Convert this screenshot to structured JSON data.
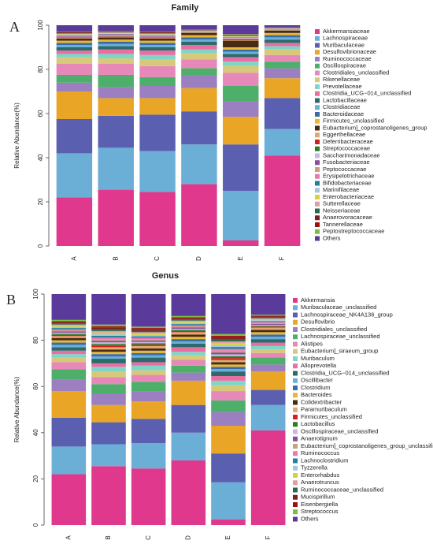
{
  "chart_data": [
    {
      "type": "bar",
      "stacked": true,
      "panel_label": "A",
      "title": "Family",
      "y_label": "Relative Abundance(%)",
      "categories": [
        "A",
        "B",
        "C",
        "D",
        "E",
        "F"
      ],
      "ylim": [
        0,
        100
      ],
      "yticks": [
        0,
        20,
        40,
        60,
        80,
        100
      ],
      "series": [
        {
          "name": "Akkermansiaceae",
          "color": "#e0388c",
          "values": [
            22,
            25.5,
            24.5,
            28,
            2.5,
            41
          ]
        },
        {
          "name": "Lachnospiraceae",
          "color": "#6baed6",
          "values": [
            20,
            19,
            18.5,
            18,
            22.5,
            12
          ]
        },
        {
          "name": "Muribaculaceae",
          "color": "#5b5fb0",
          "values": [
            15.5,
            14.5,
            16.5,
            15,
            21,
            14
          ]
        },
        {
          "name": "Desulfovibrionaceae",
          "color": "#e8a526",
          "values": [
            12.5,
            8,
            7.5,
            10.5,
            12.5,
            9
          ]
        },
        {
          "name": "Ruminococcaceae",
          "color": "#9b7fc0",
          "values": [
            4,
            5,
            5.5,
            6,
            7,
            4.5
          ]
        },
        {
          "name": "Oscillospiraceae",
          "color": "#4daf6a",
          "values": [
            3.5,
            5.5,
            4,
            3,
            7,
            3
          ]
        },
        {
          "name": "Clostridiales_unclassified",
          "color": "#e688b8",
          "values": [
            5,
            5,
            5,
            4,
            6,
            3
          ]
        },
        {
          "name": "Rikenellaceae",
          "color": "#d8c87a",
          "values": [
            3,
            2.5,
            3,
            3,
            3,
            2.5
          ]
        },
        {
          "name": "Prevotellaceae",
          "color": "#7ed6c8",
          "values": [
            1.5,
            2,
            2,
            1.5,
            2,
            1.5
          ]
        },
        {
          "name": "Clostridia_UCG−014_unclassified",
          "color": "#e96ea2",
          "values": [
            1.5,
            2,
            2,
            2,
            2,
            1.5
          ]
        },
        {
          "name": "Lactobacillaceae",
          "color": "#2e6a6a",
          "values": [
            1.5,
            1.5,
            1.5,
            1.5,
            1.5,
            1.5
          ]
        },
        {
          "name": "Clostridiaceae",
          "color": "#6ab0d8",
          "values": [
            1,
            1,
            1,
            1,
            1,
            1
          ]
        },
        {
          "name": "Bacteroidaceae",
          "color": "#3a6aa8",
          "values": [
            1,
            1,
            1,
            1,
            1,
            1
          ]
        },
        {
          "name": "Firmicutes_unclassified",
          "color": "#e8b830",
          "values": [
            1,
            1,
            1,
            1,
            1,
            1
          ]
        },
        {
          "name": "Eubacterium]_coprostanoligenes_group",
          "color": "#4a2a10",
          "values": [
            1,
            1,
            1,
            1,
            3,
            1
          ]
        },
        {
          "name": "Eggerthellaceae",
          "color": "#e0a870",
          "values": [
            0.2,
            0.2,
            0.2,
            0.1,
            0.2,
            0.1
          ]
        },
        {
          "name": "Deferribacteraceae",
          "color": "#d02020",
          "values": [
            0.2,
            0.2,
            0.2,
            0.1,
            0.2,
            0.1
          ]
        },
        {
          "name": "Streptococcaceae",
          "color": "#2a7a2a",
          "values": [
            0.2,
            0.2,
            0.2,
            0.1,
            0.2,
            0.1
          ]
        },
        {
          "name": "Saccharimonadaceae",
          "color": "#c8b8e0",
          "values": [
            0.2,
            0.2,
            0.2,
            0.1,
            0.2,
            0.1
          ]
        },
        {
          "name": "Fusobacteriaceae",
          "color": "#8a4e9a",
          "values": [
            0.2,
            0.2,
            0.2,
            0.1,
            0.2,
            0.1
          ]
        },
        {
          "name": "Peptococcaceae",
          "color": "#c8a080",
          "values": [
            0.2,
            0.2,
            0.2,
            0.1,
            0.2,
            0.1
          ]
        },
        {
          "name": "Erysipelotrichaceae",
          "color": "#e87ab0",
          "values": [
            0.2,
            0.2,
            0.2,
            0.1,
            0.2,
            0.1
          ]
        },
        {
          "name": "Bifidobacteriaceae",
          "color": "#1e80a0",
          "values": [
            0.2,
            0.2,
            0.2,
            0.1,
            0.2,
            0.1
          ]
        },
        {
          "name": "Marinifilaceae",
          "color": "#a0c8e0",
          "values": [
            0.2,
            0.2,
            0.2,
            0.1,
            0.2,
            0.1
          ]
        },
        {
          "name": "Enterobacteriaceae",
          "color": "#d8d040",
          "values": [
            0.2,
            0.2,
            0.2,
            0.1,
            0.2,
            0.1
          ]
        },
        {
          "name": "Sutterellaceae",
          "color": "#e0a0a0",
          "values": [
            0.2,
            0.2,
            0.2,
            0.1,
            0.2,
            0.1
          ]
        },
        {
          "name": "Neisseriaceae",
          "color": "#2a6a4a",
          "values": [
            0.2,
            0.2,
            0.2,
            0.1,
            0.2,
            0.1
          ]
        },
        {
          "name": "Anaerovoracaceae",
          "color": "#7a2020",
          "values": [
            0.2,
            0.2,
            0.2,
            0.1,
            0.2,
            0.1
          ]
        },
        {
          "name": "Tannerellaceae",
          "color": "#a01010",
          "values": [
            0.2,
            0.2,
            0.2,
            0.1,
            0.2,
            0.1
          ]
        },
        {
          "name": "Peptostreptococcaceae",
          "color": "#7ac040",
          "values": [
            0.2,
            0.2,
            0.2,
            0.1,
            0.2,
            0.1
          ]
        },
        {
          "name": "Others",
          "color": "#5a3a9a",
          "values": [
            3,
            2.5,
            3,
            2,
            4,
            1
          ]
        }
      ]
    },
    {
      "type": "bar",
      "stacked": true,
      "panel_label": "B",
      "title": "Genus",
      "y_label": "Relative Abundance(%)",
      "categories": [
        "A",
        "B",
        "C",
        "D",
        "E",
        "F"
      ],
      "ylim": [
        0,
        100
      ],
      "yticks": [
        0,
        20,
        40,
        60,
        80,
        100
      ],
      "series": [
        {
          "name": "Akkermansia",
          "color": "#e0388c",
          "values": [
            22,
            25.5,
            24.5,
            28,
            2.5,
            41
          ]
        },
        {
          "name": "Muribaculaceae_unclassified",
          "color": "#6baed6",
          "values": [
            12,
            9.5,
            11,
            12,
            16,
            11
          ]
        },
        {
          "name": "Lachnospiraceae_NK4A136_group",
          "color": "#5b5fb0",
          "values": [
            12.5,
            9.5,
            10.5,
            12,
            12.5,
            6.5
          ]
        },
        {
          "name": "Desulfovibrio",
          "color": "#e8a526",
          "values": [
            11.5,
            7.5,
            7.5,
            10.5,
            12,
            8
          ]
        },
        {
          "name": "Clostridiales_unclassified",
          "color": "#9b7fc0",
          "values": [
            5,
            5,
            4.5,
            3.5,
            6,
            3
          ]
        },
        {
          "name": "Lachnospiraceae_unclassified",
          "color": "#4daf6a",
          "values": [
            4.5,
            4,
            4,
            3,
            5,
            3
          ]
        },
        {
          "name": "Alistipes",
          "color": "#e688b8",
          "values": [
            3,
            3,
            3,
            2.5,
            4,
            2
          ]
        },
        {
          "name": "Eubacterium]_siraeum_group",
          "color": "#d8c87a",
          "values": [
            2,
            2.5,
            2,
            2,
            2.5,
            1.5
          ]
        },
        {
          "name": "Muribaculum",
          "color": "#7ed6c8",
          "values": [
            1.5,
            2,
            2,
            1.5,
            2,
            1.5
          ]
        },
        {
          "name": "Alloprevotella",
          "color": "#e96ea2",
          "values": [
            1.5,
            1.5,
            1.5,
            2,
            2,
            1.5
          ]
        },
        {
          "name": "Clostridia_UCG−014_unclassified",
          "color": "#2e6a6a",
          "values": [
            1.5,
            2,
            2,
            1.5,
            2,
            1.5
          ]
        },
        {
          "name": "Oscillibacter",
          "color": "#6ab0d8",
          "values": [
            1,
            1,
            1,
            1,
            1,
            1
          ]
        },
        {
          "name": "Clostridium",
          "color": "#3a6aa8",
          "values": [
            1,
            1,
            1,
            1,
            1,
            1
          ]
        },
        {
          "name": "Bacteroides",
          "color": "#e8b830",
          "values": [
            1,
            1,
            1,
            1,
            1,
            1
          ]
        },
        {
          "name": "Colidextribacter",
          "color": "#4a2a10",
          "values": [
            1,
            1,
            1,
            1,
            1,
            1
          ]
        },
        {
          "name": "Paramuribaculum",
          "color": "#e0a870",
          "values": [
            0.8,
            1,
            1,
            1,
            1,
            1
          ]
        },
        {
          "name": "Firmicutes_unclassified",
          "color": "#d02020",
          "values": [
            0.5,
            0.7,
            0.6,
            0.5,
            0.8,
            0.4
          ]
        },
        {
          "name": "Lactobacillus",
          "color": "#2a7a2a",
          "values": [
            0.5,
            0.7,
            0.6,
            0.5,
            0.8,
            0.4
          ]
        },
        {
          "name": "Oscillospiraceae_unclassified",
          "color": "#c8b8e0",
          "values": [
            0.5,
            0.7,
            0.6,
            0.5,
            0.8,
            0.4
          ]
        },
        {
          "name": "Anaerotignum",
          "color": "#8a4e9a",
          "values": [
            0.5,
            0.7,
            0.6,
            0.5,
            0.8,
            0.4
          ]
        },
        {
          "name": "Eubacterium]_coprostanoligenes_group_unclassified",
          "color": "#c8a080",
          "values": [
            0.5,
            0.7,
            0.6,
            0.5,
            0.8,
            0.4
          ]
        },
        {
          "name": "Ruminococcus",
          "color": "#e87ab0",
          "values": [
            0.5,
            0.7,
            0.6,
            0.5,
            0.8,
            0.4
          ]
        },
        {
          "name": "Lachnoclostridium",
          "color": "#1e80a0",
          "values": [
            0.5,
            0.7,
            0.6,
            0.5,
            0.8,
            0.4
          ]
        },
        {
          "name": "Tyzzerella",
          "color": "#a0c8e0",
          "values": [
            0.5,
            0.7,
            0.6,
            0.5,
            0.8,
            0.4
          ]
        },
        {
          "name": "Enterorhabdus",
          "color": "#d8d040",
          "values": [
            0.5,
            0.7,
            0.6,
            0.5,
            0.8,
            0.4
          ]
        },
        {
          "name": "Anaerotruncus",
          "color": "#e0a0a0",
          "values": [
            0.5,
            0.7,
            0.6,
            0.5,
            0.8,
            0.4
          ]
        },
        {
          "name": "Ruminococcaceae_unclassified",
          "color": "#2a6a4a",
          "values": [
            0.5,
            0.7,
            0.6,
            0.5,
            0.8,
            0.4
          ]
        },
        {
          "name": "Mucispirillum",
          "color": "#7a2020",
          "values": [
            0.5,
            0.7,
            0.6,
            0.5,
            0.8,
            0.4
          ]
        },
        {
          "name": "Eisenbergiella",
          "color": "#a01010",
          "values": [
            0.5,
            0.7,
            0.6,
            0.5,
            0.8,
            0.4
          ]
        },
        {
          "name": "Streptococcus",
          "color": "#7ac040",
          "values": [
            0.5,
            0.7,
            0.6,
            0.5,
            0.8,
            0.4
          ]
        },
        {
          "name": "Others",
          "color": "#5a3a9a",
          "values": [
            11.2,
            13.2,
            14.1,
            9.5,
            17.3,
            8.9
          ]
        }
      ]
    }
  ]
}
